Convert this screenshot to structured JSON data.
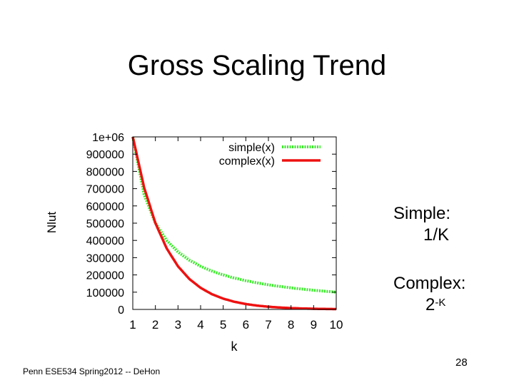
{
  "slide": {
    "title": "Gross Scaling Trend",
    "simple_label": "Simple:",
    "simple_expr": "1/K",
    "complex_label": "Complex:",
    "complex_base": "2",
    "complex_exp": "-K",
    "footer": "Penn ESE534 Spring2012 -- DeHon",
    "page_number": "28"
  },
  "chart_data": {
    "type": "line",
    "xlabel": "k",
    "ylabel": "Nlut",
    "xlim": [
      1,
      10
    ],
    "ylim": [
      0,
      1000000
    ],
    "x_ticks": [
      "1",
      "2",
      "3",
      "4",
      "5",
      "6",
      "7",
      "8",
      "9",
      "10"
    ],
    "y_ticks": [
      "0",
      "100000",
      "200000",
      "300000",
      "400000",
      "500000",
      "600000",
      "700000",
      "800000",
      "900000",
      "1e+06"
    ],
    "legend_position": "top-right",
    "series": [
      {
        "name": "simple(x)",
        "color": "#33ee22",
        "style": "dotted",
        "x": [
          1,
          1.5,
          2,
          2.5,
          3,
          3.5,
          4,
          4.5,
          5,
          5.5,
          6,
          6.5,
          7,
          7.5,
          8,
          8.5,
          9,
          9.5,
          10
        ],
        "y": [
          1000000,
          666667,
          500000,
          400000,
          333333,
          285714,
          250000,
          222222,
          200000,
          181818,
          166667,
          153846,
          142857,
          133333,
          125000,
          117647,
          111111,
          105263,
          100000
        ]
      },
      {
        "name": "complex(x)",
        "color": "#ee1111",
        "style": "solid",
        "x": [
          1,
          1.5,
          2,
          2.5,
          3,
          3.5,
          4,
          4.5,
          5,
          5.5,
          6,
          6.5,
          7,
          7.5,
          8,
          8.5,
          9,
          9.5,
          10
        ],
        "y": [
          1000000,
          707107,
          500000,
          353553,
          250000,
          176777,
          125000,
          88388,
          62500,
          44194,
          31250,
          22097,
          15625,
          11049,
          7813,
          5524,
          3906,
          2762,
          1953
        ]
      }
    ]
  }
}
